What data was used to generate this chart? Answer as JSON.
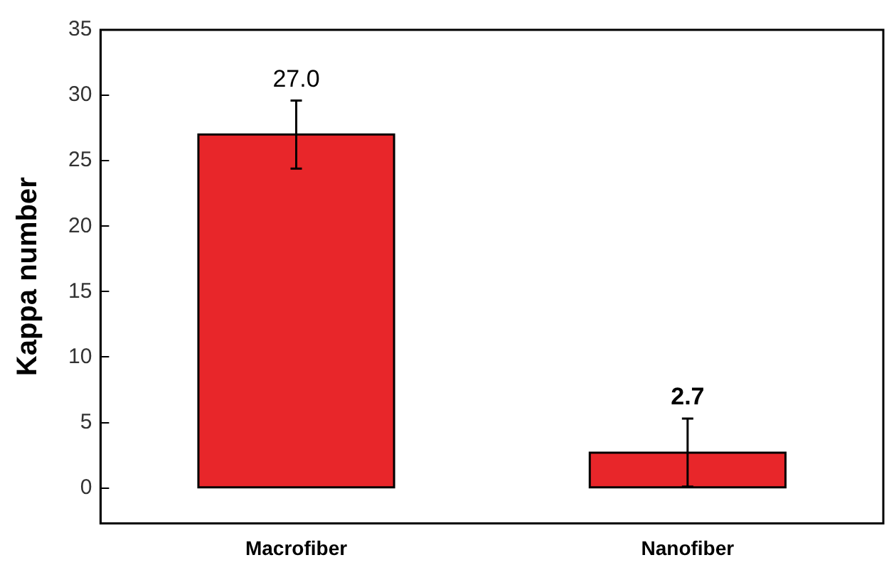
{
  "chart_data": {
    "type": "bar",
    "ylabel": "Kappa number",
    "categories": [
      "Macrofiber",
      "Nanofiber"
    ],
    "values": [
      27.0,
      2.7
    ],
    "color": "#e8262a",
    "errors": [
      2.6,
      2.6
    ],
    "value_labels": [
      "27.0",
      "2.7"
    ],
    "ylim": [
      -2.7,
      35
    ],
    "yticks": [
      0,
      5,
      10,
      15,
      20,
      25,
      30,
      35
    ],
    "grid": false,
    "legend": false
  }
}
